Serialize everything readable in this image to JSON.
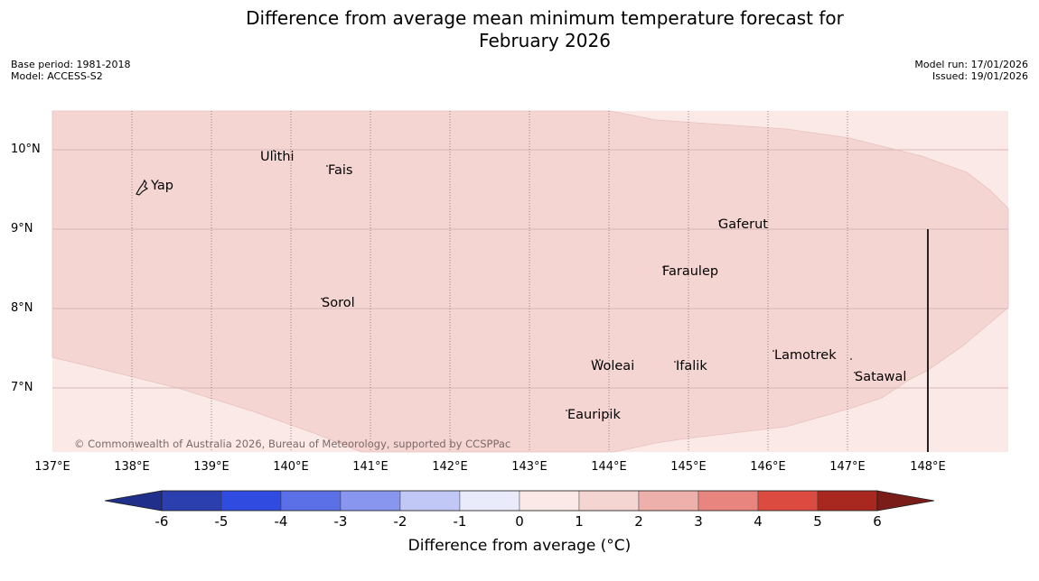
{
  "title_line1": "Difference from average mean minimum temperature forecast for",
  "title_line2": "February 2026",
  "meta": {
    "base_period": "Base period: 1981-2018",
    "model": "Model: ACCESS-S2",
    "model_run": "Model run: 17/01/2026",
    "issued": "Issued: 19/01/2026"
  },
  "copyright": "© Commonwealth of Australia 2026, Bureau of Meteorology, supported by CCSPPac",
  "lat_labels": [
    "10°N",
    "9°N",
    "8°N",
    "7°N"
  ],
  "lon_labels": [
    "137°E",
    "138°E",
    "139°E",
    "140°E",
    "141°E",
    "142°E",
    "143°E",
    "144°E",
    "145°E",
    "146°E",
    "147°E",
    "148°E"
  ],
  "places": [
    "Ulithi",
    "Fais",
    "Yap",
    "Gaferut",
    "Faraulep",
    "Sorol",
    "Lamotrek",
    "Woleai",
    "Ifalik",
    "Satawal",
    "Eauripik"
  ],
  "colorbar": {
    "ticks": [
      "-6",
      "-5",
      "-4",
      "-3",
      "-2",
      "-1",
      "0",
      "1",
      "2",
      "3",
      "4",
      "5",
      "6"
    ],
    "label": "Difference from average (°C)"
  },
  "colors": {
    "anomaly_0_1": "#fbe9e7",
    "anomaly_1_2": "#f5d5d2",
    "cb_under": "#1f2f8a",
    "cb_over": "#7a1c18",
    "cb_bins": [
      "#2c3fae",
      "#2f4be0",
      "#5b70e6",
      "#8896ef",
      "#c1c8f6",
      "#e9ebfb",
      "#fbe9e7",
      "#f5d5d2",
      "#eeb0aa",
      "#e8857f",
      "#dc4b40",
      "#a8271f"
    ]
  }
}
